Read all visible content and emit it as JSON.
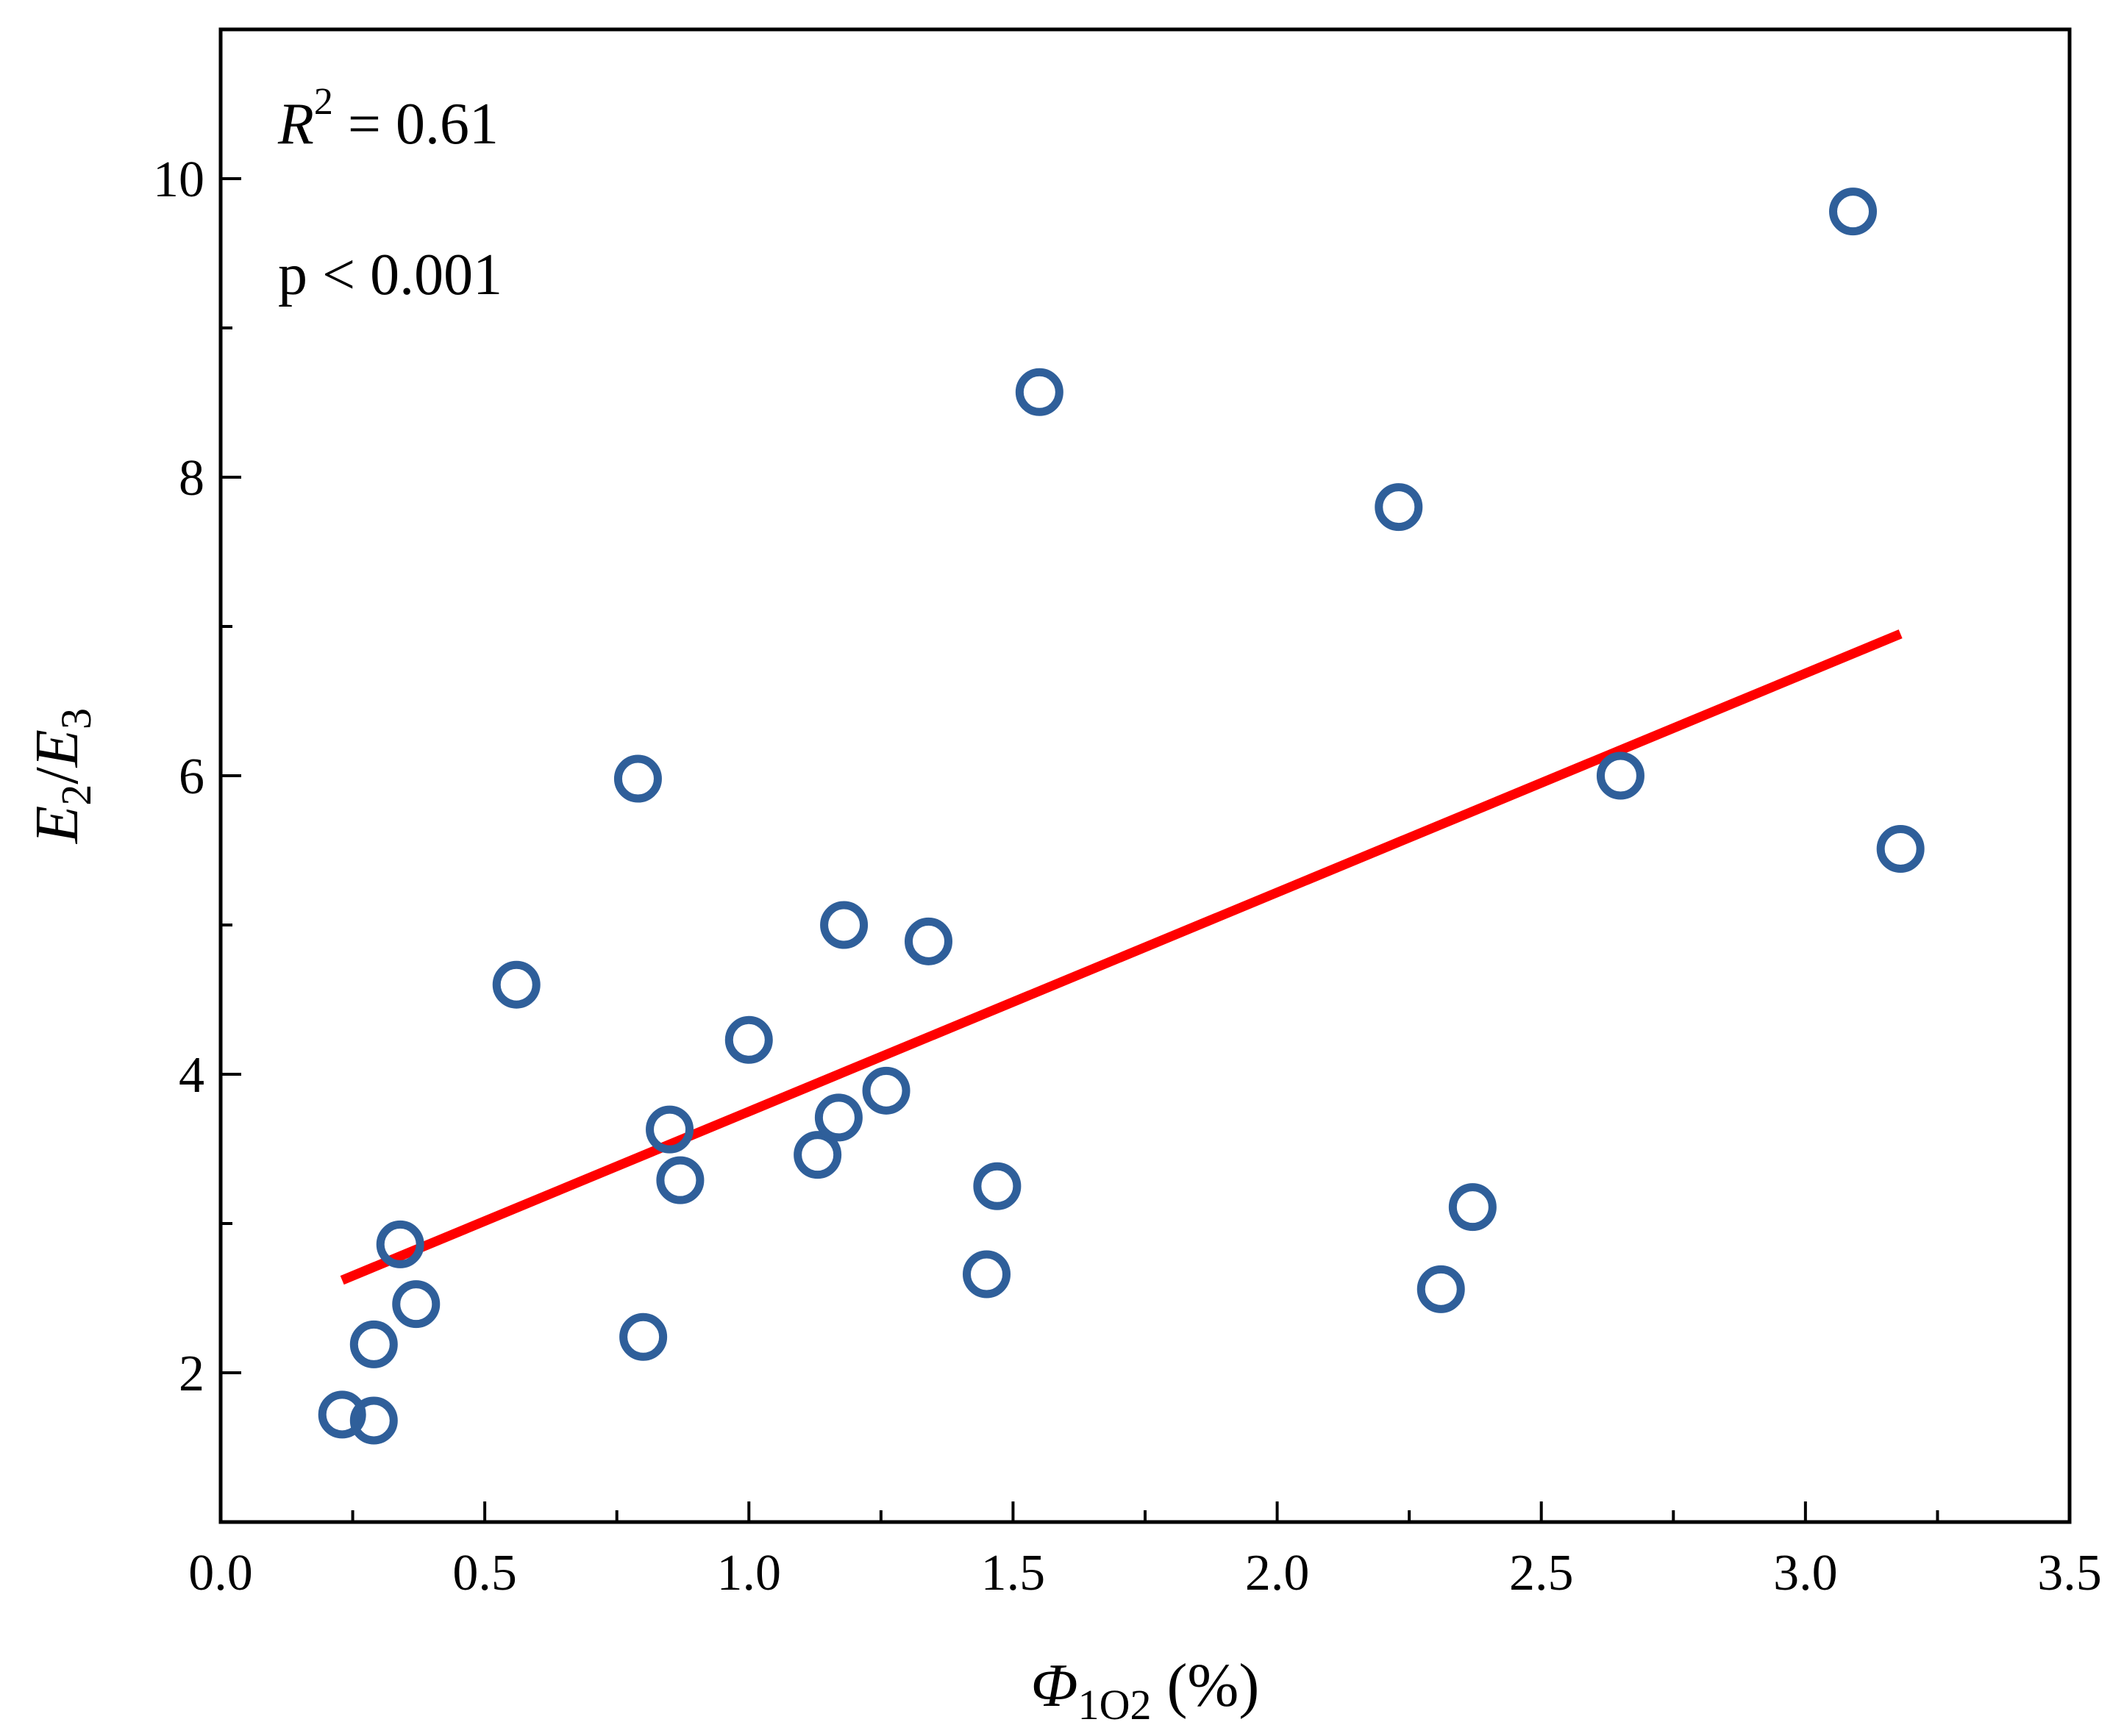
{
  "chart_data": {
    "type": "scatter",
    "xlim": [
      0.0,
      3.5
    ],
    "ylim": [
      1.0,
      11.0
    ],
    "xticks": [
      "0.0",
      "0.5",
      "1.0",
      "1.5",
      "2.0",
      "2.5",
      "3.0",
      "3.5"
    ],
    "yticks": [
      "2",
      "4",
      "6",
      "8",
      "10"
    ],
    "xlabel": {
      "symbol": "Φ",
      "subscript": "1O2",
      "unit": " (%)"
    },
    "ylabel": {
      "e1": "E",
      "s1": "2",
      "slash": "/",
      "e2": "E",
      "s2": "3"
    },
    "annotations": {
      "r2": {
        "letter": "R",
        "power": "2",
        "rest": " = 0.61"
      },
      "p": "p < 0.001"
    },
    "series": [
      {
        "name": "observations",
        "marker": "open-circle",
        "color": "#2f5f9a",
        "points": [
          [
            0.23,
            1.72
          ],
          [
            0.29,
            1.68
          ],
          [
            0.29,
            2.19
          ],
          [
            0.34,
            2.86
          ],
          [
            0.37,
            2.46
          ],
          [
            0.56,
            4.6
          ],
          [
            0.79,
            5.98
          ],
          [
            0.8,
            2.24
          ],
          [
            0.85,
            3.63
          ],
          [
            0.87,
            3.29
          ],
          [
            1.0,
            4.23
          ],
          [
            1.13,
            3.46
          ],
          [
            1.17,
            3.71
          ],
          [
            1.18,
            5.0
          ],
          [
            1.26,
            3.89
          ],
          [
            1.34,
            4.89
          ],
          [
            1.45,
            2.66
          ],
          [
            1.47,
            3.25
          ],
          [
            1.55,
            8.57
          ],
          [
            2.23,
            7.8
          ],
          [
            2.31,
            2.56
          ],
          [
            2.37,
            3.11
          ],
          [
            2.65,
            6.0
          ],
          [
            3.09,
            9.78
          ],
          [
            3.18,
            5.51
          ]
        ]
      }
    ],
    "fit_line": {
      "color": "#ff0000",
      "x": [
        0.23,
        3.18
      ],
      "y": [
        2.62,
        6.95
      ]
    }
  }
}
